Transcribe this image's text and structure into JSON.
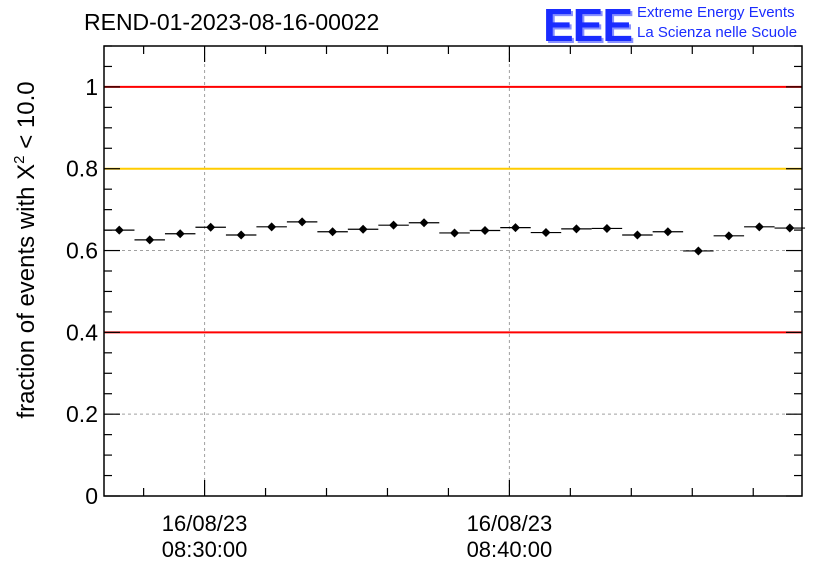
{
  "title": "REND-01-2023-08-16-00022",
  "logo": {
    "mark": "EEE",
    "line1": "Extreme Energy Events",
    "line2": "La Scienza nelle Scuole",
    "color": "#1a2cff"
  },
  "chart_data": {
    "type": "scatter",
    "ylabel": "fraction of events with χ² < 10.0",
    "ylabel_parts": {
      "prefix": "fraction of events with ",
      "symbol": "X",
      "sup": "2",
      "suffix": " < 10.0"
    },
    "ylim": [
      0,
      1.1
    ],
    "yticks": [
      0,
      0.2,
      0.4,
      0.6,
      0.8,
      1
    ],
    "ytick_labels": [
      "0",
      "0.2",
      "0.4",
      "0.6",
      "0.8",
      "1"
    ],
    "xlim_minutes": [
      26.7,
      49.6
    ],
    "xticks_minutes": [
      30,
      40
    ],
    "xtick_labels": [
      [
        "16/08/23",
        "08:30:00"
      ],
      [
        "16/08/23",
        "08:40:00"
      ]
    ],
    "grid": true,
    "reference_lines": [
      {
        "y": 1.0,
        "color": "#ff0000"
      },
      {
        "y": 0.8,
        "color": "#ffcc00"
      },
      {
        "y": 0.4,
        "color": "#ff0000"
      }
    ],
    "bin_width_minutes": 1.0,
    "x_minutes": [
      27.2,
      28.2,
      29.2,
      30.2,
      31.2,
      32.2,
      33.2,
      34.2,
      35.2,
      36.2,
      37.2,
      38.2,
      39.2,
      40.2,
      41.2,
      42.2,
      43.2,
      44.2,
      45.2,
      46.2,
      47.2,
      48.2,
      49.2
    ],
    "y": [
      0.65,
      0.626,
      0.641,
      0.657,
      0.638,
      0.658,
      0.67,
      0.646,
      0.652,
      0.662,
      0.668,
      0.643,
      0.649,
      0.656,
      0.644,
      0.653,
      0.654,
      0.638,
      0.646,
      0.599,
      0.636,
      0.658,
      0.655
    ],
    "marker_color": "#000000"
  }
}
